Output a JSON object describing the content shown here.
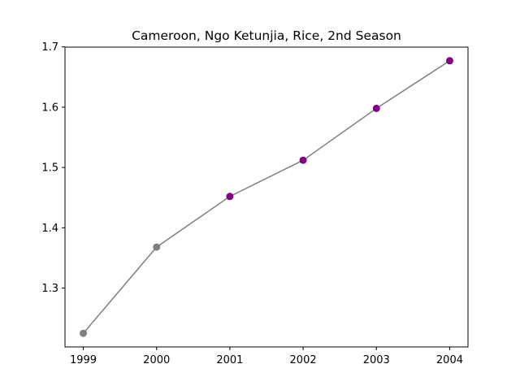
{
  "chart_data": {
    "type": "line",
    "title": "Cameroon, Ngo Ketunjia, Rice, 2nd Season",
    "xlabel": "",
    "ylabel": "",
    "x": [
      1999,
      2000,
      2001,
      2002,
      2003,
      2004
    ],
    "values": [
      1.225,
      1.368,
      1.452,
      1.512,
      1.598,
      1.677
    ],
    "marker_colors": [
      "#808080",
      "#808080",
      "#800080",
      "#800080",
      "#800080",
      "#800080"
    ],
    "line_color": "#808080",
    "xlim": [
      1998.75,
      2004.25
    ],
    "ylim": [
      1.2024,
      1.6996
    ],
    "xticks": [
      "1999",
      "2000",
      "2001",
      "2002",
      "2003",
      "2004"
    ],
    "yticks": [
      "1.3",
      "1.4",
      "1.5",
      "1.6",
      "1.7"
    ],
    "ytick_values": [
      1.3,
      1.4,
      1.5,
      1.6,
      1.7
    ],
    "grid": false,
    "legend": "none"
  }
}
